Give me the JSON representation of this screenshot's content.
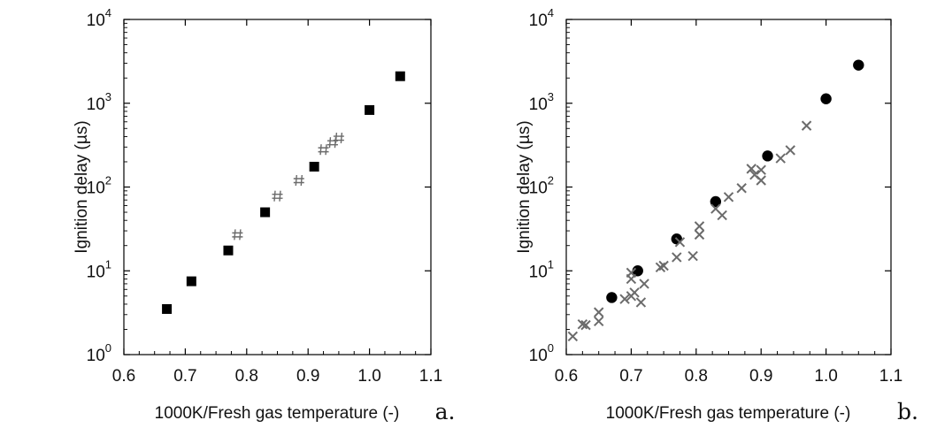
{
  "chart_data": [
    {
      "type": "scatter",
      "panel_label": "a.",
      "xlabel": "1000K/Fresh gas temperature (-)",
      "ylabel": "Ignition delay (µs)",
      "xlim": [
        0.6,
        1.1
      ],
      "ylim": [
        1,
        10000
      ],
      "y_scale": "log",
      "x_ticks": [
        "0.6",
        "0.7",
        "0.8",
        "0.9",
        "1.0",
        "1.1"
      ],
      "y_ticks": [
        {
          "base": "10",
          "exp": "0"
        },
        {
          "base": "10",
          "exp": "1"
        },
        {
          "base": "10",
          "exp": "2"
        },
        {
          "base": "10",
          "exp": "3"
        },
        {
          "base": "10",
          "exp": "4"
        }
      ],
      "y_tick_values": [
        1,
        10,
        100,
        1000,
        10000
      ],
      "grid": false,
      "series": [
        {
          "marker": "square",
          "color": "#000000",
          "points": [
            {
              "x": 0.67,
              "y": 3.5
            },
            {
              "x": 0.71,
              "y": 7.5
            },
            {
              "x": 0.77,
              "y": 17.5
            },
            {
              "x": 0.83,
              "y": 50
            },
            {
              "x": 0.91,
              "y": 175
            },
            {
              "x": 1.0,
              "y": 830
            },
            {
              "x": 1.05,
              "y": 2100
            }
          ]
        },
        {
          "marker": "hash",
          "color": "#6b6b6b",
          "points": [
            {
              "x": 0.785,
              "y": 27
            },
            {
              "x": 0.85,
              "y": 78
            },
            {
              "x": 0.885,
              "y": 120
            },
            {
              "x": 0.925,
              "y": 280
            },
            {
              "x": 0.94,
              "y": 340
            },
            {
              "x": 0.95,
              "y": 385
            }
          ]
        }
      ]
    },
    {
      "type": "scatter",
      "panel_label": "b.",
      "xlabel": "1000K/Fresh gas temperature (-)",
      "ylabel": "Ignition delay (µs)",
      "xlim": [
        0.6,
        1.1
      ],
      "ylim": [
        1,
        10000
      ],
      "y_scale": "log",
      "x_ticks": [
        "0.6",
        "0.7",
        "0.8",
        "0.9",
        "1.0",
        "1.1"
      ],
      "y_ticks": [
        {
          "base": "10",
          "exp": "0"
        },
        {
          "base": "10",
          "exp": "1"
        },
        {
          "base": "10",
          "exp": "2"
        },
        {
          "base": "10",
          "exp": "3"
        },
        {
          "base": "10",
          "exp": "4"
        }
      ],
      "y_tick_values": [
        1,
        10,
        100,
        1000,
        10000
      ],
      "grid": false,
      "series": [
        {
          "marker": "circle",
          "color": "#000000",
          "points": [
            {
              "x": 0.67,
              "y": 4.8
            },
            {
              "x": 0.71,
              "y": 10
            },
            {
              "x": 0.77,
              "y": 24
            },
            {
              "x": 0.83,
              "y": 67
            },
            {
              "x": 0.91,
              "y": 235
            },
            {
              "x": 1.0,
              "y": 1130
            },
            {
              "x": 1.05,
              "y": 2850
            }
          ]
        },
        {
          "marker": "x",
          "color": "#6b6b6b",
          "points": [
            {
              "x": 0.61,
              "y": 1.65
            },
            {
              "x": 0.625,
              "y": 2.3
            },
            {
              "x": 0.63,
              "y": 2.25
            },
            {
              "x": 0.65,
              "y": 2.5
            },
            {
              "x": 0.65,
              "y": 3.2
            },
            {
              "x": 0.69,
              "y": 4.6
            },
            {
              "x": 0.7,
              "y": 5.0
            },
            {
              "x": 0.705,
              "y": 5.5
            },
            {
              "x": 0.7,
              "y": 8.0
            },
            {
              "x": 0.7,
              "y": 9.5
            },
            {
              "x": 0.715,
              "y": 4.2
            },
            {
              "x": 0.72,
              "y": 7.0
            },
            {
              "x": 0.745,
              "y": 11.0
            },
            {
              "x": 0.75,
              "y": 11.5
            },
            {
              "x": 0.77,
              "y": 14.5
            },
            {
              "x": 0.775,
              "y": 22
            },
            {
              "x": 0.795,
              "y": 15
            },
            {
              "x": 0.805,
              "y": 27
            },
            {
              "x": 0.805,
              "y": 34
            },
            {
              "x": 0.83,
              "y": 55
            },
            {
              "x": 0.84,
              "y": 46
            },
            {
              "x": 0.85,
              "y": 76
            },
            {
              "x": 0.87,
              "y": 97
            },
            {
              "x": 0.885,
              "y": 165
            },
            {
              "x": 0.89,
              "y": 140
            },
            {
              "x": 0.9,
              "y": 120
            },
            {
              "x": 0.9,
              "y": 160
            },
            {
              "x": 0.93,
              "y": 220
            },
            {
              "x": 0.945,
              "y": 275
            },
            {
              "x": 0.97,
              "y": 540
            }
          ]
        }
      ]
    }
  ]
}
